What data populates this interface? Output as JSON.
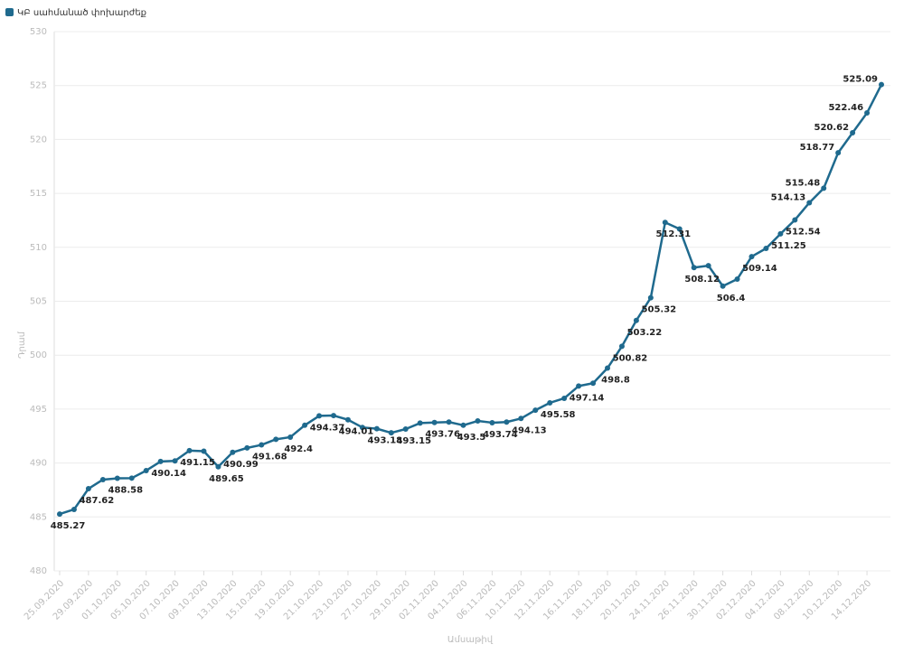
{
  "chart_data": {
    "type": "line",
    "xlabel": "Ամսաթիվ",
    "ylabel": "Դրամ",
    "categories": [
      "25.09.2020",
      null,
      "29.09.2020",
      null,
      "01.10.2020",
      null,
      "05.10.2020",
      null,
      "07.10.2020",
      null,
      "09.10.2020",
      null,
      "13.10.2020",
      null,
      "15.10.2020",
      null,
      "19.10.2020",
      null,
      "21.10.2020",
      null,
      "23.10.2020",
      null,
      "27.10.2020",
      null,
      "29.10.2020",
      null,
      "02.11.2020",
      null,
      "04.11.2020",
      null,
      "06.11.2020",
      null,
      "10.11.2020",
      null,
      "12.11.2020",
      null,
      "16.11.2020",
      null,
      "18.11.2020",
      null,
      "20.11.2020",
      null,
      "24.11.2020",
      null,
      "26.11.2020",
      null,
      "30.11.2020",
      null,
      "02.12.2020",
      null,
      "04.12.2020",
      null,
      "08.12.2020",
      null,
      "10.12.2020",
      null,
      "14.12.2020",
      null
    ],
    "series": [
      {
        "name": "ԿԲ սահմանած փոխարժեք",
        "color": "#1f6a8e",
        "values": [
          485.27,
          485.7,
          487.62,
          488.46,
          488.58,
          488.6,
          489.3,
          490.14,
          490.2,
          491.15,
          491.1,
          489.65,
          490.99,
          491.4,
          491.68,
          492.2,
          492.4,
          493.5,
          494.37,
          494.4,
          494.01,
          493.3,
          493.18,
          492.8,
          493.15,
          493.7,
          493.76,
          493.8,
          493.5,
          493.9,
          493.74,
          493.8,
          494.13,
          494.9,
          495.58,
          496.0,
          497.14,
          497.4,
          498.8,
          500.82,
          503.22,
          505.32,
          512.31,
          511.7,
          508.12,
          508.3,
          506.4,
          507.05,
          509.14,
          509.9,
          511.25,
          512.54,
          514.13,
          515.48,
          518.77,
          520.62,
          522.46,
          525.09
        ],
        "value_labels": [
          "485.27",
          null,
          "487.62",
          null,
          "488.58",
          null,
          null,
          "490.14",
          null,
          "491.15",
          null,
          "489.65",
          "490.99",
          null,
          "491.68",
          null,
          "492.4",
          null,
          "494.37",
          null,
          "494.01",
          null,
          "493.18",
          null,
          "493.15",
          null,
          "493.76",
          null,
          "493.5",
          null,
          "493.74",
          null,
          "494.13",
          null,
          "495.58",
          null,
          "497.14",
          null,
          "498.8",
          "500.82",
          "503.22",
          "505.32",
          "512.31",
          null,
          "508.12",
          null,
          "506.4",
          null,
          "509.14",
          null,
          "511.25",
          "512.54",
          "514.13",
          "515.48",
          "518.77",
          "520.62",
          "522.46",
          "525.09"
        ]
      }
    ],
    "ylim": [
      480,
      530
    ],
    "yticks": [
      480,
      485,
      490,
      495,
      500,
      505,
      510,
      515,
      520,
      525,
      530
    ],
    "grid": true,
    "legend": "top-left"
  }
}
